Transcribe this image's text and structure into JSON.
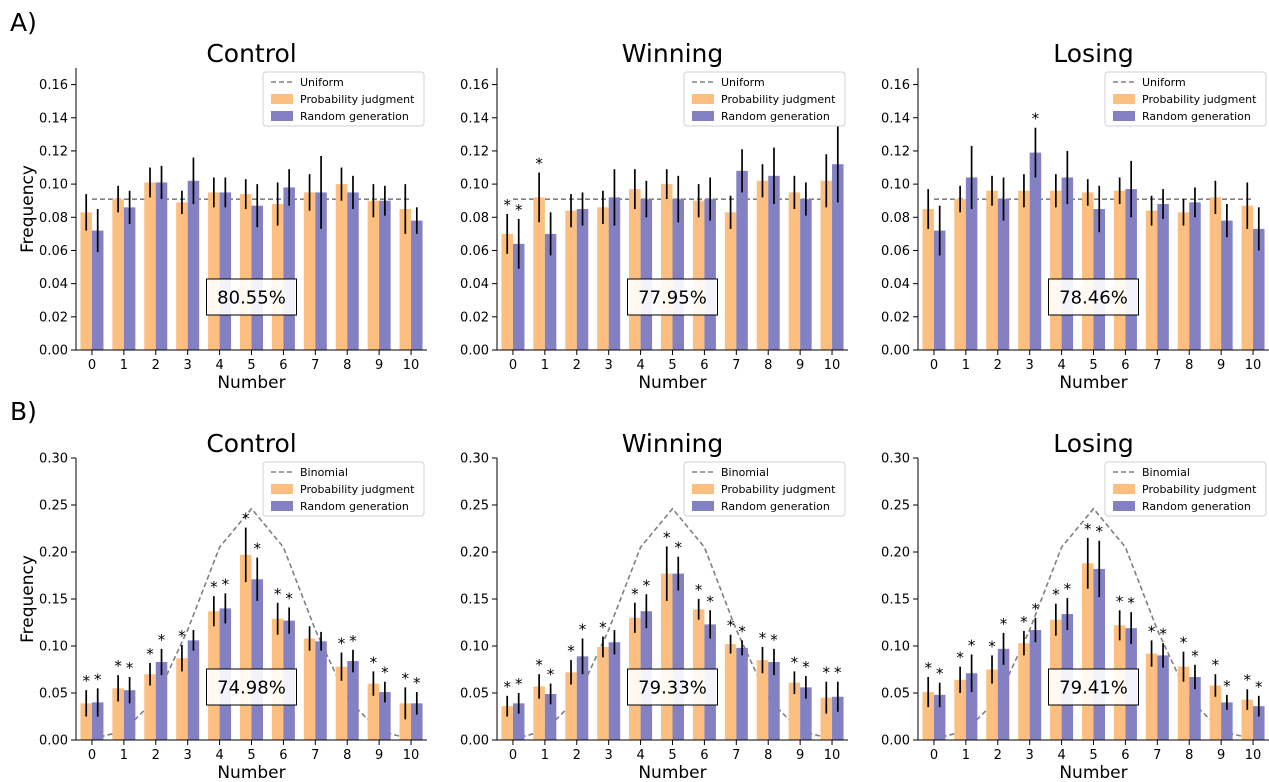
{
  "figure": {
    "panel_labels": [
      "A)",
      "B)"
    ],
    "colors": {
      "pj": "#fdbf7f",
      "rg": "#8381c3",
      "ref": "#808080",
      "err": "#000000"
    }
  },
  "chart_data": [
    {
      "type": "bar",
      "row": 0,
      "col": 0,
      "title": "Control",
      "xlabel": "Number",
      "ylabel": "Frequency",
      "categories": [
        "0",
        "1",
        "2",
        "3",
        "4",
        "5",
        "6",
        "7",
        "8",
        "9",
        "10"
      ],
      "ylim": [
        0,
        0.17
      ],
      "yticks": [
        "0.00",
        "0.02",
        "0.04",
        "0.06",
        "0.08",
        "0.10",
        "0.12",
        "0.14",
        "0.16"
      ],
      "legend": {
        "placement": "top-right",
        "entries": [
          "Uniform",
          "Probability judgment",
          "Random generation"
        ]
      },
      "reference": {
        "name": "Uniform",
        "values": [
          0.0909,
          0.0909,
          0.0909,
          0.0909,
          0.0909,
          0.0909,
          0.0909,
          0.0909,
          0.0909,
          0.0909,
          0.0909
        ]
      },
      "series": [
        {
          "name": "Probability judgment",
          "values": [
            0.083,
            0.091,
            0.101,
            0.089,
            0.095,
            0.094,
            0.088,
            0.095,
            0.1,
            0.09,
            0.085
          ],
          "err": [
            0.011,
            0.008,
            0.009,
            0.007,
            0.009,
            0.009,
            0.013,
            0.011,
            0.01,
            0.01,
            0.015
          ],
          "stars": [
            "",
            "",
            "",
            "",
            "",
            "",
            "",
            "",
            "",
            "",
            ""
          ]
        },
        {
          "name": "Random generation",
          "values": [
            0.072,
            0.086,
            0.101,
            0.102,
            0.095,
            0.087,
            0.098,
            0.095,
            0.095,
            0.09,
            0.078
          ],
          "err": [
            0.013,
            0.01,
            0.01,
            0.014,
            0.009,
            0.013,
            0.011,
            0.022,
            0.01,
            0.009,
            0.008
          ],
          "stars": [
            "",
            "",
            "",
            "",
            "",
            "",
            "",
            "",
            "",
            "",
            ""
          ]
        }
      ],
      "annotation": "80.55%"
    },
    {
      "type": "bar",
      "row": 0,
      "col": 1,
      "title": "Winning",
      "xlabel": "Number",
      "ylabel": "",
      "categories": [
        "0",
        "1",
        "2",
        "3",
        "4",
        "5",
        "6",
        "7",
        "8",
        "9",
        "10"
      ],
      "ylim": [
        0,
        0.17
      ],
      "yticks": [
        "0.00",
        "0.02",
        "0.04",
        "0.06",
        "0.08",
        "0.10",
        "0.12",
        "0.14",
        "0.16"
      ],
      "legend": {
        "placement": "top-right",
        "entries": [
          "Uniform",
          "Probability judgment",
          "Random generation"
        ]
      },
      "reference": {
        "name": "Uniform",
        "values": [
          0.0909,
          0.0909,
          0.0909,
          0.0909,
          0.0909,
          0.0909,
          0.0909,
          0.0909,
          0.0909,
          0.0909,
          0.0909
        ]
      },
      "series": [
        {
          "name": "Probability judgment",
          "values": [
            0.07,
            0.092,
            0.084,
            0.086,
            0.097,
            0.1,
            0.09,
            0.083,
            0.102,
            0.095,
            0.102
          ],
          "err": [
            0.012,
            0.015,
            0.01,
            0.01,
            0.012,
            0.009,
            0.01,
            0.01,
            0.01,
            0.01,
            0.016
          ],
          "stars": [
            "*",
            "*",
            "",
            "",
            "",
            "",
            "",
            "",
            "",
            "",
            ""
          ]
        },
        {
          "name": "Random generation",
          "values": [
            0.064,
            0.07,
            0.085,
            0.092,
            0.091,
            0.091,
            0.091,
            0.108,
            0.105,
            0.091,
            0.112
          ],
          "err": [
            0.015,
            0.013,
            0.01,
            0.017,
            0.011,
            0.014,
            0.013,
            0.013,
            0.017,
            0.01,
            0.023
          ],
          "stars": [
            "*",
            "",
            "",
            "",
            "",
            "",
            "",
            "",
            "",
            "",
            ""
          ]
        }
      ],
      "annotation": "77.95%"
    },
    {
      "type": "bar",
      "row": 0,
      "col": 2,
      "title": "Losing",
      "xlabel": "Number",
      "ylabel": "",
      "categories": [
        "0",
        "1",
        "2",
        "3",
        "4",
        "5",
        "6",
        "7",
        "8",
        "9",
        "10"
      ],
      "ylim": [
        0,
        0.17
      ],
      "yticks": [
        "0.00",
        "0.02",
        "0.04",
        "0.06",
        "0.08",
        "0.10",
        "0.12",
        "0.14",
        "0.16"
      ],
      "legend": {
        "placement": "top-right",
        "entries": [
          "Uniform",
          "Probability judgment",
          "Random generation"
        ]
      },
      "reference": {
        "name": "Uniform",
        "values": [
          0.0909,
          0.0909,
          0.0909,
          0.0909,
          0.0909,
          0.0909,
          0.0909,
          0.0909,
          0.0909,
          0.0909,
          0.0909
        ]
      },
      "series": [
        {
          "name": "Probability judgment",
          "values": [
            0.085,
            0.091,
            0.096,
            0.096,
            0.096,
            0.095,
            0.096,
            0.084,
            0.083,
            0.092,
            0.087
          ],
          "err": [
            0.012,
            0.008,
            0.009,
            0.01,
            0.01,
            0.008,
            0.008,
            0.009,
            0.008,
            0.01,
            0.014
          ],
          "stars": [
            "",
            "",
            "",
            "",
            "",
            "",
            "",
            "",
            "",
            "",
            ""
          ]
        },
        {
          "name": "Random generation",
          "values": [
            0.072,
            0.104,
            0.091,
            0.119,
            0.104,
            0.085,
            0.097,
            0.088,
            0.089,
            0.078,
            0.073
          ],
          "err": [
            0.015,
            0.019,
            0.013,
            0.015,
            0.016,
            0.014,
            0.017,
            0.009,
            0.009,
            0.01,
            0.013
          ],
          "stars": [
            "",
            "",
            "",
            "*",
            "",
            "",
            "",
            "",
            "",
            "",
            ""
          ]
        }
      ],
      "annotation": "78.46%"
    },
    {
      "type": "bar",
      "row": 1,
      "col": 0,
      "title": "Control",
      "xlabel": "Number",
      "ylabel": "Frequency",
      "categories": [
        "0",
        "1",
        "2",
        "3",
        "4",
        "5",
        "6",
        "7",
        "8",
        "9",
        "10"
      ],
      "ylim": [
        0,
        0.3
      ],
      "yticks": [
        "0.00",
        "0.05",
        "0.10",
        "0.15",
        "0.20",
        "0.25",
        "0.30"
      ],
      "legend": {
        "placement": "top-right",
        "entries": [
          "Binomial",
          "Probability judgment",
          "Random generation"
        ]
      },
      "reference": {
        "name": "Binomial",
        "values": [
          0.001,
          0.0098,
          0.0439,
          0.1172,
          0.2051,
          0.2461,
          0.2051,
          0.1172,
          0.0439,
          0.0098,
          0.001
        ]
      },
      "series": [
        {
          "name": "Probability judgment",
          "values": [
            0.039,
            0.055,
            0.07,
            0.087,
            0.137,
            0.197,
            0.129,
            0.108,
            0.078,
            0.06,
            0.039
          ],
          "err": [
            0.014,
            0.014,
            0.012,
            0.014,
            0.016,
            0.029,
            0.017,
            0.013,
            0.015,
            0.013,
            0.017
          ],
          "stars": [
            "*",
            "*",
            "*",
            "*",
            "*",
            "*",
            "*",
            "",
            "*",
            "*",
            "*"
          ]
        },
        {
          "name": "Random generation",
          "values": [
            0.04,
            0.053,
            0.083,
            0.106,
            0.14,
            0.171,
            0.127,
            0.105,
            0.084,
            0.051,
            0.039
          ],
          "err": [
            0.015,
            0.014,
            0.014,
            0.011,
            0.016,
            0.023,
            0.014,
            0.01,
            0.012,
            0.011,
            0.012
          ],
          "stars": [
            "*",
            "*",
            "*",
            "",
            "*",
            "*",
            "*",
            "",
            "*",
            "*",
            "*"
          ]
        }
      ],
      "annotation": "74.98%"
    },
    {
      "type": "bar",
      "row": 1,
      "col": 1,
      "title": "Winning",
      "xlabel": "Number",
      "ylabel": "",
      "categories": [
        "0",
        "1",
        "2",
        "3",
        "4",
        "5",
        "6",
        "7",
        "8",
        "9",
        "10"
      ],
      "ylim": [
        0,
        0.3
      ],
      "yticks": [
        "0.00",
        "0.05",
        "0.10",
        "0.15",
        "0.20",
        "0.25",
        "0.30"
      ],
      "legend": {
        "placement": "top-right",
        "entries": [
          "Binomial",
          "Probability judgment",
          "Random generation"
        ]
      },
      "reference": {
        "name": "Binomial",
        "values": [
          0.001,
          0.0098,
          0.0439,
          0.1172,
          0.2051,
          0.2461,
          0.2051,
          0.1172,
          0.0439,
          0.0098,
          0.001
        ]
      },
      "series": [
        {
          "name": "Probability judgment",
          "values": [
            0.036,
            0.057,
            0.072,
            0.099,
            0.13,
            0.177,
            0.139,
            0.102,
            0.085,
            0.061,
            0.045
          ],
          "err": [
            0.011,
            0.013,
            0.013,
            0.011,
            0.016,
            0.029,
            0.011,
            0.01,
            0.014,
            0.012,
            0.017
          ],
          "stars": [
            "*",
            "*",
            "*",
            "*",
            "*",
            "*",
            "*",
            "*",
            "*",
            "*",
            "*"
          ]
        },
        {
          "name": "Random generation",
          "values": [
            0.039,
            0.049,
            0.089,
            0.104,
            0.137,
            0.177,
            0.123,
            0.098,
            0.083,
            0.056,
            0.046
          ],
          "err": [
            0.011,
            0.011,
            0.019,
            0.013,
            0.018,
            0.018,
            0.015,
            0.008,
            0.014,
            0.012,
            0.016
          ],
          "stars": [
            "*",
            "*",
            "*",
            "",
            "*",
            "*",
            "*",
            "*",
            "*",
            "*",
            "*"
          ]
        }
      ],
      "annotation": "79.33%"
    },
    {
      "type": "bar",
      "row": 1,
      "col": 2,
      "title": "Losing",
      "xlabel": "Number",
      "ylabel": "",
      "categories": [
        "0",
        "1",
        "2",
        "3",
        "4",
        "5",
        "6",
        "7",
        "8",
        "9",
        "10"
      ],
      "ylim": [
        0,
        0.3
      ],
      "yticks": [
        "0.00",
        "0.05",
        "0.10",
        "0.15",
        "0.20",
        "0.25",
        "0.30"
      ],
      "legend": {
        "placement": "top-right",
        "entries": [
          "Binomial",
          "Probability judgment",
          "Random generation"
        ]
      },
      "reference": {
        "name": "Binomial",
        "values": [
          0.001,
          0.0098,
          0.0439,
          0.1172,
          0.2051,
          0.2461,
          0.2051,
          0.1172,
          0.0439,
          0.0098,
          0.001
        ]
      },
      "series": [
        {
          "name": "Probability judgment",
          "values": [
            0.051,
            0.064,
            0.075,
            0.103,
            0.128,
            0.188,
            0.122,
            0.092,
            0.078,
            0.058,
            0.043
          ],
          "err": [
            0.016,
            0.014,
            0.015,
            0.013,
            0.017,
            0.027,
            0.016,
            0.014,
            0.016,
            0.012,
            0.011
          ],
          "stars": [
            "*",
            "*",
            "*",
            "*",
            "*",
            "*",
            "*",
            "*",
            "*",
            "*",
            "*"
          ]
        },
        {
          "name": "Random generation",
          "values": [
            0.048,
            0.071,
            0.097,
            0.117,
            0.134,
            0.182,
            0.119,
            0.09,
            0.067,
            0.04,
            0.036
          ],
          "err": [
            0.013,
            0.02,
            0.017,
            0.013,
            0.017,
            0.03,
            0.017,
            0.013,
            0.013,
            0.008,
            0.011
          ],
          "stars": [
            "*",
            "*",
            "*",
            "*",
            "*",
            "*",
            "*",
            "*",
            "*",
            "*",
            "*"
          ]
        }
      ],
      "annotation": "79.41%"
    }
  ]
}
